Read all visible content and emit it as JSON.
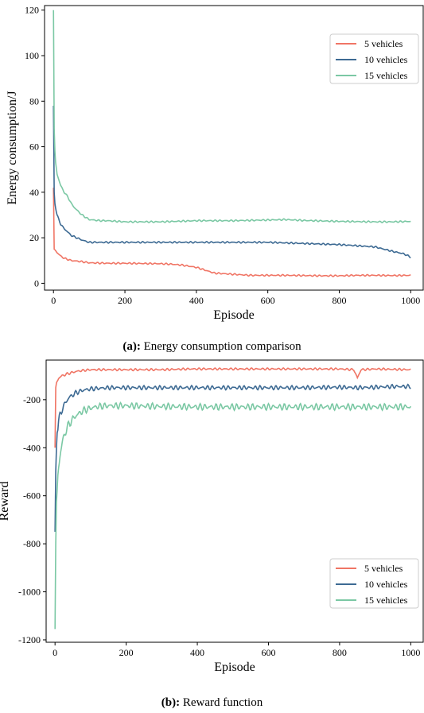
{
  "chart_data": [
    {
      "type": "line",
      "title": "",
      "xlabel": "Episode",
      "ylabel": "Energy consumption/J",
      "xlim": [
        -25,
        1035
      ],
      "ylim": [
        -3,
        122
      ],
      "xticks": [
        0,
        200,
        400,
        600,
        800,
        1000
      ],
      "yticks": [
        0,
        20,
        40,
        60,
        80,
        100,
        120
      ],
      "legend_position": "upper-right",
      "grid": false,
      "series": [
        {
          "name": "5 vehicles",
          "color": "#f07565",
          "x": [
            0,
            1,
            2,
            3,
            5,
            8,
            10,
            20,
            30,
            50,
            80,
            100,
            150,
            200,
            250,
            300,
            330,
            360,
            400,
            450,
            500,
            550,
            600,
            650,
            700,
            750,
            800,
            850,
            900,
            950,
            1000
          ],
          "y": [
            42,
            40,
            15,
            15,
            14.5,
            14,
            13.5,
            12,
            11,
            10,
            9.5,
            9,
            8.8,
            8.8,
            8.7,
            8.6,
            8.4,
            8,
            7,
            4.5,
            4,
            3.5,
            3.5,
            3.5,
            3.4,
            3.3,
            3.3,
            3.5,
            3.5,
            3.4,
            3.5
          ]
        },
        {
          "name": "10 vehicles",
          "color": "#3d6a93",
          "x": [
            0,
            1,
            2,
            4,
            6,
            10,
            20,
            30,
            50,
            80,
            100,
            150,
            200,
            300,
            400,
            500,
            600,
            700,
            800,
            850,
            900,
            950,
            980,
            1000
          ],
          "y": [
            78,
            70,
            40,
            35,
            33,
            30,
            26,
            24,
            21,
            19,
            18,
            18,
            18,
            18,
            18,
            18,
            18,
            17.5,
            17,
            16.5,
            16,
            14,
            13,
            11.5
          ]
        },
        {
          "name": "15 vehicles",
          "color": "#7bc8a4",
          "x": [
            0,
            1,
            2,
            4,
            6,
            10,
            20,
            30,
            40,
            50,
            60,
            80,
            100,
            130,
            150,
            200,
            300,
            400,
            500,
            600,
            650,
            700,
            800,
            900,
            950,
            1000
          ],
          "y": [
            120,
            100,
            68,
            58,
            53,
            48,
            43,
            40,
            38,
            35,
            33,
            30,
            28,
            27.5,
            27.5,
            27,
            27,
            27.5,
            27.5,
            27.8,
            28,
            27.6,
            27.2,
            27,
            27,
            27.2
          ]
        }
      ]
    },
    {
      "type": "line",
      "title": "",
      "xlabel": "Episode",
      "ylabel": "Reward",
      "xlim": [
        -25,
        1035
      ],
      "ylim": [
        -1210,
        -35
      ],
      "xticks": [
        0,
        200,
        400,
        600,
        800,
        1000
      ],
      "yticks": [
        -200,
        -400,
        -600,
        -800,
        -1000,
        -1200
      ],
      "legend_position": "lower-right",
      "grid": false,
      "series": [
        {
          "name": "5 vehicles",
          "color": "#f07565",
          "x": [
            0,
            2,
            4,
            7,
            10,
            20,
            40,
            60,
            80,
            100,
            150,
            200,
            300,
            380,
            400,
            500,
            600,
            700,
            800,
            840,
            850,
            860,
            900,
            1000
          ],
          "y": [
            -400,
            -150,
            -130,
            -120,
            -110,
            -100,
            -90,
            -82,
            -78,
            -75,
            -75,
            -75,
            -75,
            -72,
            -72,
            -72,
            -72,
            -72,
            -72,
            -75,
            -110,
            -75,
            -72,
            -75
          ]
        },
        {
          "name": "10 vehicles",
          "color": "#3d6a93",
          "x": [
            0,
            2,
            5,
            10,
            15,
            20,
            30,
            40,
            60,
            80,
            100,
            150,
            200,
            300,
            400,
            500,
            600,
            700,
            800,
            850,
            900,
            950,
            1000
          ],
          "y": [
            -750,
            -500,
            -350,
            -290,
            -260,
            -240,
            -210,
            -190,
            -170,
            -160,
            -155,
            -150,
            -150,
            -150,
            -150,
            -150,
            -150,
            -150,
            -148,
            -150,
            -148,
            -145,
            -145
          ]
        },
        {
          "name": "15 vehicles",
          "color": "#7bc8a4",
          "x": [
            0,
            1,
            2,
            3,
            5,
            8,
            10,
            15,
            20,
            30,
            40,
            50,
            60,
            80,
            100,
            120,
            150,
            200,
            300,
            400,
            500,
            600,
            700,
            800,
            900,
            1000
          ],
          "y": [
            -1155,
            -1000,
            -800,
            -650,
            -600,
            -520,
            -480,
            -420,
            -380,
            -330,
            -300,
            -280,
            -265,
            -245,
            -235,
            -228,
            -225,
            -225,
            -228,
            -230,
            -230,
            -230,
            -230,
            -230,
            -230,
            -230
          ]
        }
      ]
    }
  ],
  "captions": [
    {
      "label": "(a):",
      "text": " Energy consumption comparison"
    },
    {
      "label": "(b):",
      "text": " Reward function"
    }
  ]
}
